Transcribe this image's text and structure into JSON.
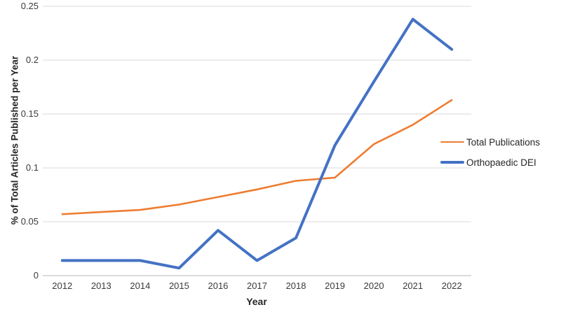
{
  "chart_data": {
    "type": "line",
    "title": "",
    "xlabel": "Year",
    "ylabel": "% of Total Articles Published per Year",
    "categories": [
      "2012",
      "2013",
      "2014",
      "2015",
      "2016",
      "2017",
      "2018",
      "2019",
      "2020",
      "2021",
      "2022"
    ],
    "series": [
      {
        "name": "Total Publications",
        "color": "#ED7D31",
        "line_width": 2.6,
        "values": [
          0.057,
          0.059,
          0.061,
          0.066,
          0.073,
          0.08,
          0.088,
          0.091,
          0.122,
          0.14,
          0.163
        ]
      },
      {
        "name": "Orthopaedic DEI",
        "color": "#4472C4",
        "line_width": 4,
        "values": [
          0.014,
          0.014,
          0.014,
          0.007,
          0.042,
          0.014,
          0.035,
          0.121,
          0.18,
          0.238,
          0.21
        ]
      }
    ],
    "ylim": [
      0,
      0.25
    ],
    "ytick_labels": [
      "0",
      "0.05",
      "0.1",
      "0.15",
      "0.2",
      "0.25"
    ],
    "ytick_values": [
      0,
      0.05,
      0.1,
      0.15,
      0.2,
      0.25
    ],
    "grid": true,
    "legend_position": "right",
    "gridline_color": "#D9D9D9",
    "axis_line_color": "#D0CECE",
    "tick_text_color": "#3a3a3a",
    "background_color": "#ffffff"
  }
}
